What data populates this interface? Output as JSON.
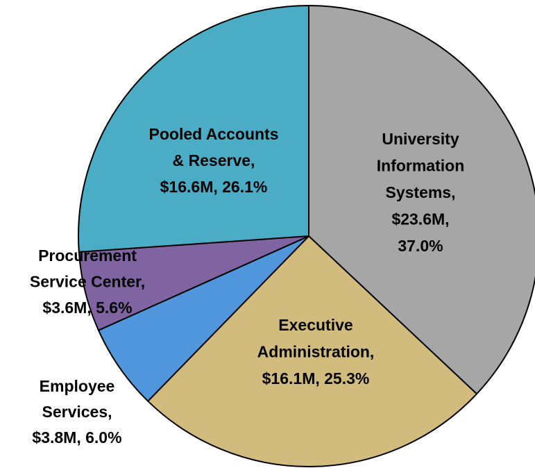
{
  "chart_data": {
    "type": "pie",
    "labels": [
      [
        "University",
        "Information",
        "Systems,",
        "$23.6M,",
        "37.0%"
      ],
      [
        "Executive",
        "Administration,",
        "$16.1M, 25.3%"
      ],
      [
        "Employee",
        "Services,",
        "$3.8M, 6.0%"
      ],
      [
        "Procurement",
        "Service Center,",
        "$3.6M, 5.6%"
      ],
      [
        "Pooled Accounts",
        "& Reserve,",
        "$16.6M, 26.1%"
      ]
    ],
    "values": [
      37.0,
      25.3,
      6.0,
      5.6,
      26.1
    ],
    "colors": [
      "#a6a6a6",
      "#d1bc7e",
      "#5096dc",
      "#8064a2",
      "#4bacc6"
    ]
  }
}
